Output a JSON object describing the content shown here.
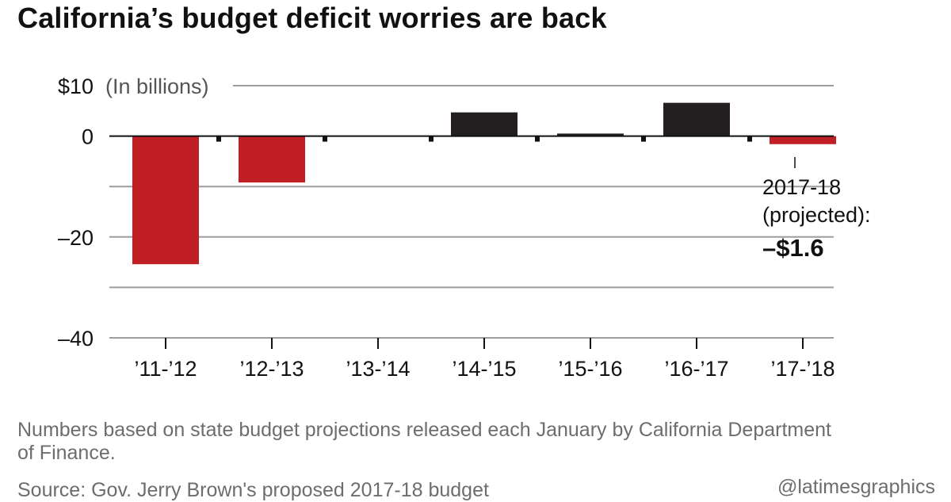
{
  "header": {
    "title": "California’s budget deficit worries are back"
  },
  "chart_data": {
    "type": "bar",
    "title": "California’s budget deficit worries are back",
    "unit_label": "(In billions)",
    "categories": [
      "’11-’12",
      "’12-’13",
      "’13-’14",
      "’14-’15",
      "’15-’16",
      "’16-’17",
      "’17-’18"
    ],
    "values": [
      -25.4,
      -9.2,
      0,
      4.7,
      0.5,
      6.6,
      -1.6
    ],
    "ylim": [
      -40,
      10
    ],
    "yticks": [
      10,
      0,
      -20,
      -40
    ],
    "ytick_labels": [
      "$10",
      "0",
      "–20",
      "–40"
    ],
    "gridlines": [
      10,
      0,
      -10,
      -20,
      -30,
      -40
    ],
    "colors": {
      "deficit": "#c11f26",
      "surplus": "#231f20",
      "grid": "#9d9d9d"
    },
    "annotation": {
      "category": "’17-’18",
      "line1": "2017-18",
      "line2": "(projected):",
      "value": "–$1.6"
    }
  },
  "footer": {
    "note": "Numbers based on state budget projections released each January by California Department of Finance.",
    "source": "Source: Gov. Jerry Brown's proposed 2017-18 budget",
    "credit": "@latimesgraphics"
  }
}
